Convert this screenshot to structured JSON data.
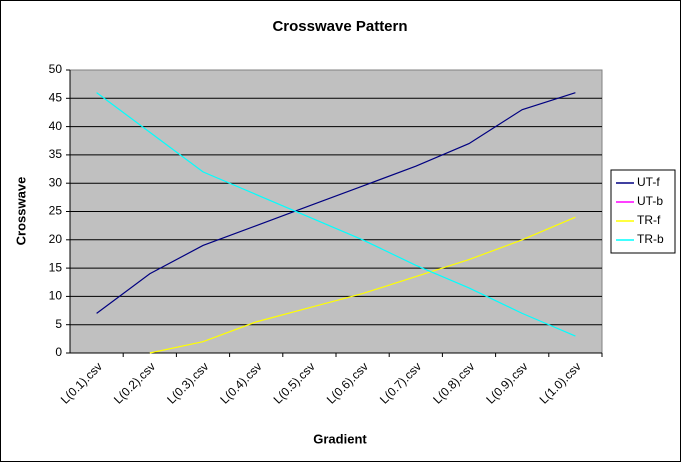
{
  "chart_data": {
    "type": "line",
    "title": "Crosswave Pattern",
    "x_label": "Gradient",
    "y_label": "Crosswave",
    "categories": [
      "L(0.1).csv",
      "L(0.2).csv",
      "L(0.3).csv",
      "L(0.4).csv",
      "L(0.5).csv",
      "L(0.6).csv",
      "L(0.7).csv",
      "L(0.8).csv",
      "L(0.9).csv",
      "L(1.0).csv"
    ],
    "series": [
      {
        "name": "UT-f",
        "color": "#000080",
        "values": [
          7,
          14,
          19,
          22.5,
          26,
          29.5,
          33,
          37,
          43,
          46
        ]
      },
      {
        "name": "UT-b",
        "color": "#ff00ff",
        "values": [
          null,
          null,
          null,
          null,
          null,
          null,
          null,
          null,
          null,
          null
        ]
      },
      {
        "name": "TR-f",
        "color": "#ffff00",
        "values": [
          null,
          0,
          2,
          5.5,
          8,
          10.5,
          13.5,
          16.5,
          20,
          24
        ]
      },
      {
        "name": "TR-b",
        "color": "#00ffff",
        "values": [
          46,
          39,
          32,
          28,
          24,
          20,
          15.5,
          11.5,
          7,
          3
        ]
      }
    ],
    "ylim": [
      0,
      50
    ],
    "yticks": [
      0,
      5,
      10,
      15,
      20,
      25,
      30,
      35,
      40,
      45,
      50
    ],
    "grid": true,
    "legend": "right"
  }
}
